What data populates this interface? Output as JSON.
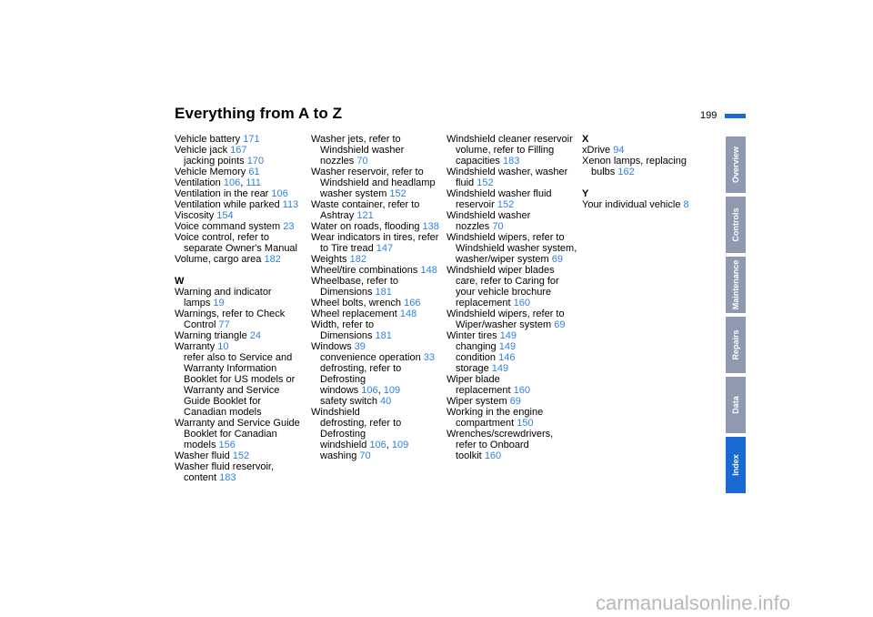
{
  "header": {
    "title": "Everything from A to Z",
    "page_number": "199"
  },
  "side_tabs": [
    "Overview",
    "Controls",
    "Maintenance",
    "Repairs",
    "Data",
    "Index"
  ],
  "active_tab": "Index",
  "columns": [
    [
      {
        "t": "Vehicle battery",
        "p": [
          "171"
        ]
      },
      {
        "t": "Vehicle jack",
        "p": [
          "167"
        ]
      },
      {
        "t": "jacking points",
        "p": [
          "170"
        ],
        "s": 1
      },
      {
        "t": "Vehicle Memory",
        "p": [
          "61"
        ]
      },
      {
        "t": "Ventilation",
        "p": [
          "106",
          "111"
        ]
      },
      {
        "t": "Ventilation in the rear",
        "p": [
          "106"
        ]
      },
      {
        "t": "Ventilation while parked",
        "p": [
          "113"
        ]
      },
      {
        "t": "Viscosity",
        "p": [
          "154"
        ]
      },
      {
        "t": "Voice command system",
        "p": [
          "23"
        ]
      },
      {
        "t": "Voice control, refer to"
      },
      {
        "t": "separate Owner's Manual",
        "s": 1
      },
      {
        "t": "Volume, cargo area",
        "p": [
          "182"
        ]
      },
      {
        "t": "W",
        "letter": 1
      },
      {
        "t": "Warning and indicator"
      },
      {
        "t": "lamps",
        "p": [
          "19"
        ],
        "s": 1
      },
      {
        "t": "Warnings, refer to Check"
      },
      {
        "t": "Control",
        "p": [
          "77"
        ],
        "s": 1
      },
      {
        "t": "Warning triangle",
        "p": [
          "24"
        ]
      },
      {
        "t": "Warranty",
        "p": [
          "10"
        ]
      },
      {
        "t": "refer also to Service and",
        "s": 1
      },
      {
        "t": "Warranty Information",
        "s": 1
      },
      {
        "t": "Booklet for US models or",
        "s": 1
      },
      {
        "t": "Warranty and Service",
        "s": 1
      },
      {
        "t": "Guide Booklet for",
        "s": 1
      },
      {
        "t": "Canadian models",
        "s": 1
      },
      {
        "t": "Warranty and Service Guide"
      },
      {
        "t": "Booklet for Canadian",
        "s": 1
      },
      {
        "t": "models",
        "p": [
          "156"
        ],
        "s": 1
      },
      {
        "t": "Washer fluid",
        "p": [
          "152"
        ]
      },
      {
        "t": "Washer fluid reservoir,"
      },
      {
        "t": "content",
        "p": [
          "183"
        ],
        "s": 1
      }
    ],
    [
      {
        "t": "Washer jets, refer to"
      },
      {
        "t": "Windshield washer",
        "s": 1
      },
      {
        "t": "nozzles",
        "p": [
          "70"
        ],
        "s": 1
      },
      {
        "t": "Washer reservoir, refer to"
      },
      {
        "t": "Windshield and headlamp",
        "s": 1
      },
      {
        "t": "washer system",
        "p": [
          "152"
        ],
        "s": 1
      },
      {
        "t": "Waste container, refer to"
      },
      {
        "t": "Ashtray",
        "p": [
          "121"
        ],
        "s": 1
      },
      {
        "t": "Water on roads, flooding",
        "p": [
          "138"
        ]
      },
      {
        "t": "Wear indicators in tires, refer"
      },
      {
        "t": "to Tire tread",
        "p": [
          "147"
        ],
        "s": 1
      },
      {
        "t": "Weights",
        "p": [
          "182"
        ]
      },
      {
        "t": "Wheel/tire combinations",
        "p": [
          "148"
        ]
      },
      {
        "t": "Wheelbase, refer to"
      },
      {
        "t": "Dimensions",
        "p": [
          "181"
        ],
        "s": 1
      },
      {
        "t": "Wheel bolts, wrench",
        "p": [
          "166"
        ]
      },
      {
        "t": "Wheel replacement",
        "p": [
          "148"
        ]
      },
      {
        "t": "Width, refer to"
      },
      {
        "t": "Dimensions",
        "p": [
          "181"
        ],
        "s": 1
      },
      {
        "t": "Windows",
        "p": [
          "39"
        ]
      },
      {
        "t": "convenience operation",
        "p": [
          "33"
        ],
        "s": 1
      },
      {
        "t": "defrosting, refer to",
        "s": 1
      },
      {
        "t": "Defrosting",
        "s": 1
      },
      {
        "t": "windows",
        "p": [
          "106",
          "109"
        ],
        "s": 1
      },
      {
        "t": "safety switch",
        "p": [
          "40"
        ],
        "s": 1
      },
      {
        "t": "Windshield"
      },
      {
        "t": "defrosting, refer to",
        "s": 1
      },
      {
        "t": "Defrosting",
        "s": 1
      },
      {
        "t": "windshield",
        "p": [
          "106",
          "109"
        ],
        "s": 1
      },
      {
        "t": "washing",
        "p": [
          "70"
        ],
        "s": 1
      }
    ],
    [
      {
        "t": "Windshield cleaner reservoir"
      },
      {
        "t": "volume, refer to Filling",
        "s": 1
      },
      {
        "t": "capacities",
        "p": [
          "183"
        ],
        "s": 1
      },
      {
        "t": "Windshield washer, washer"
      },
      {
        "t": "fluid",
        "p": [
          "152"
        ],
        "s": 1
      },
      {
        "t": "Windshield washer fluid"
      },
      {
        "t": "reservoir",
        "p": [
          "152"
        ],
        "s": 1
      },
      {
        "t": "Windshield washer"
      },
      {
        "t": "nozzles",
        "p": [
          "70"
        ],
        "s": 1
      },
      {
        "t": "Windshield wipers, refer to"
      },
      {
        "t": "Windshield washer system,",
        "s": 1
      },
      {
        "t": "washer/wiper system",
        "p": [
          "69"
        ],
        "s": 1
      },
      {
        "t": "Windshield wiper blades"
      },
      {
        "t": "care, refer to Caring for",
        "s": 1
      },
      {
        "t": "your vehicle brochure",
        "s": 1
      },
      {
        "t": "replacement",
        "p": [
          "160"
        ],
        "s": 1
      },
      {
        "t": "Windshield wipers, refer to"
      },
      {
        "t": "Wiper/washer system",
        "p": [
          "69"
        ],
        "s": 1
      },
      {
        "t": "Winter tires",
        "p": [
          "149"
        ]
      },
      {
        "t": "changing",
        "p": [
          "149"
        ],
        "s": 1
      },
      {
        "t": "condition",
        "p": [
          "146"
        ],
        "s": 1
      },
      {
        "t": "storage",
        "p": [
          "149"
        ],
        "s": 1
      },
      {
        "t": "Wiper blade"
      },
      {
        "t": "replacement",
        "p": [
          "160"
        ],
        "s": 1
      },
      {
        "t": "Wiper system",
        "p": [
          "69"
        ]
      },
      {
        "t": "Working in the engine"
      },
      {
        "t": "compartment",
        "p": [
          "150"
        ],
        "s": 1
      },
      {
        "t": "Wrenches/screwdrivers,"
      },
      {
        "t": "refer to Onboard",
        "s": 1
      },
      {
        "t": "toolkit",
        "p": [
          "160"
        ],
        "s": 1
      }
    ],
    [
      {
        "t": "X",
        "letter": 1,
        "first": 1
      },
      {
        "t": "xDrive",
        "p": [
          "94"
        ]
      },
      {
        "t": "Xenon lamps, replacing"
      },
      {
        "t": "bulbs",
        "p": [
          "162"
        ],
        "s": 1
      },
      {
        "t": "Y",
        "letter": 1
      },
      {
        "t": "Your individual vehicle",
        "p": [
          "8"
        ]
      }
    ]
  ],
  "watermark": "carmanualsonline.info",
  "colors": {
    "page_ref": "#2f7fe0",
    "active_tab": "#1a6bd1",
    "inactive_tab": "#8f9ab0"
  }
}
